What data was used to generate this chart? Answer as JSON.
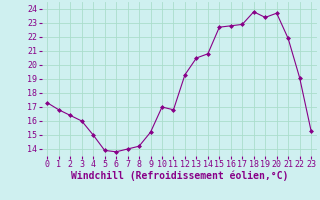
{
  "x": [
    0,
    1,
    2,
    3,
    4,
    5,
    6,
    7,
    8,
    9,
    10,
    11,
    12,
    13,
    14,
    15,
    16,
    17,
    18,
    19,
    20,
    21,
    22,
    23
  ],
  "y": [
    17.3,
    16.8,
    16.4,
    16.0,
    15.0,
    13.9,
    13.8,
    14.0,
    14.2,
    15.2,
    17.0,
    16.8,
    19.3,
    20.5,
    20.8,
    22.7,
    22.8,
    22.9,
    23.8,
    23.4,
    23.7,
    21.9,
    19.1,
    15.3
  ],
  "line_color": "#880088",
  "marker": "D",
  "marker_size": 2,
  "bg_color": "#cff0f0",
  "grid_color": "#aaddcc",
  "ylabel_vals": [
    14,
    15,
    16,
    17,
    18,
    19,
    20,
    21,
    22,
    23,
    24
  ],
  "xlabel_vals": [
    0,
    1,
    2,
    3,
    4,
    5,
    6,
    7,
    8,
    9,
    10,
    11,
    12,
    13,
    14,
    15,
    16,
    17,
    18,
    19,
    20,
    21,
    22,
    23
  ],
  "xlabel_label": "Windchill (Refroidissement éolien,°C)",
  "ylim": [
    13.5,
    24.5
  ],
  "xlim": [
    -0.5,
    23.5
  ],
  "tick_fontsize": 6,
  "xlabel_fontsize": 7
}
